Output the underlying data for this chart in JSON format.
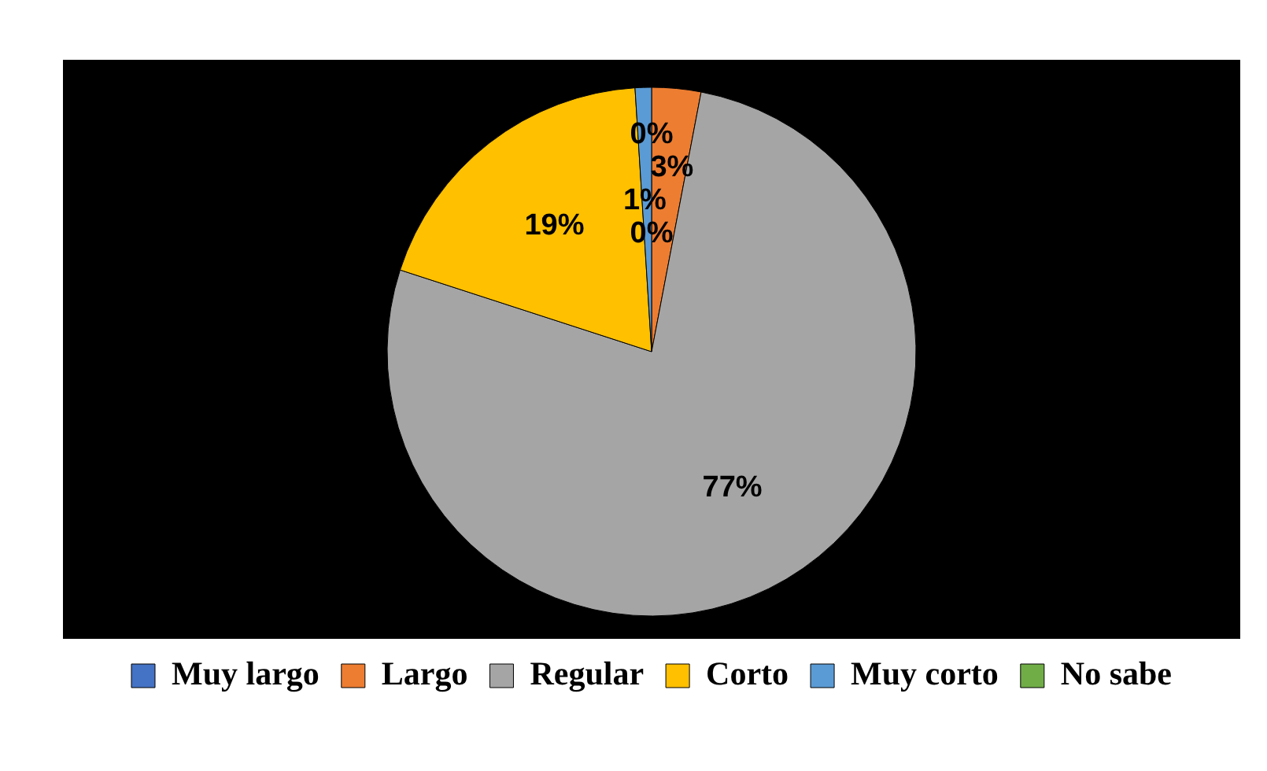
{
  "chart_data": {
    "type": "pie",
    "categories": [
      "Muy largo",
      "Largo",
      "Regular",
      "Corto",
      "Muy corto",
      "No sabe"
    ],
    "values": [
      0,
      3,
      77,
      19,
      1,
      0
    ],
    "colors": [
      "#4472c4",
      "#ed7d31",
      "#a5a5a5",
      "#ffc000",
      "#5b9bd5",
      "#70ad47"
    ],
    "value_labels": [
      "0%",
      "3%",
      "77%",
      "19%",
      "1%",
      "0%"
    ],
    "legend": "bottom"
  }
}
